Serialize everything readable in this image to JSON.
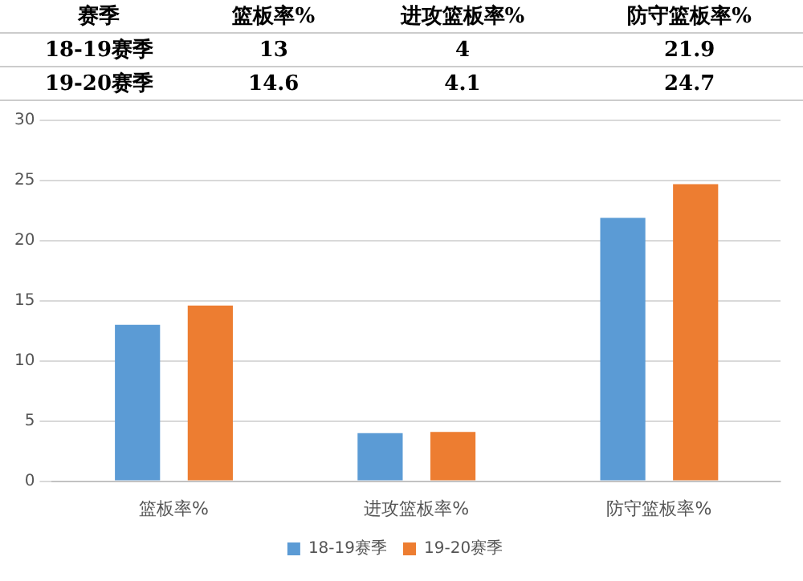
{
  "chart_data": {
    "type": "bar",
    "categories": [
      "篮板率%",
      "进攻篮板率%",
      "防守篮板率%"
    ],
    "series": [
      {
        "name": "18-19赛季",
        "color": "#5b9bd5",
        "values": [
          13,
          4,
          21.9
        ]
      },
      {
        "name": "19-20赛季",
        "color": "#ed7d31",
        "values": [
          14.6,
          4.1,
          24.7
        ]
      }
    ],
    "ylim": [
      0,
      30
    ],
    "yticks": [
      0,
      5,
      10,
      15,
      20,
      25,
      30
    ],
    "grid": "y",
    "legend": "bottom",
    "data_labels": true,
    "annotations": [
      "赛季"
    ]
  }
}
